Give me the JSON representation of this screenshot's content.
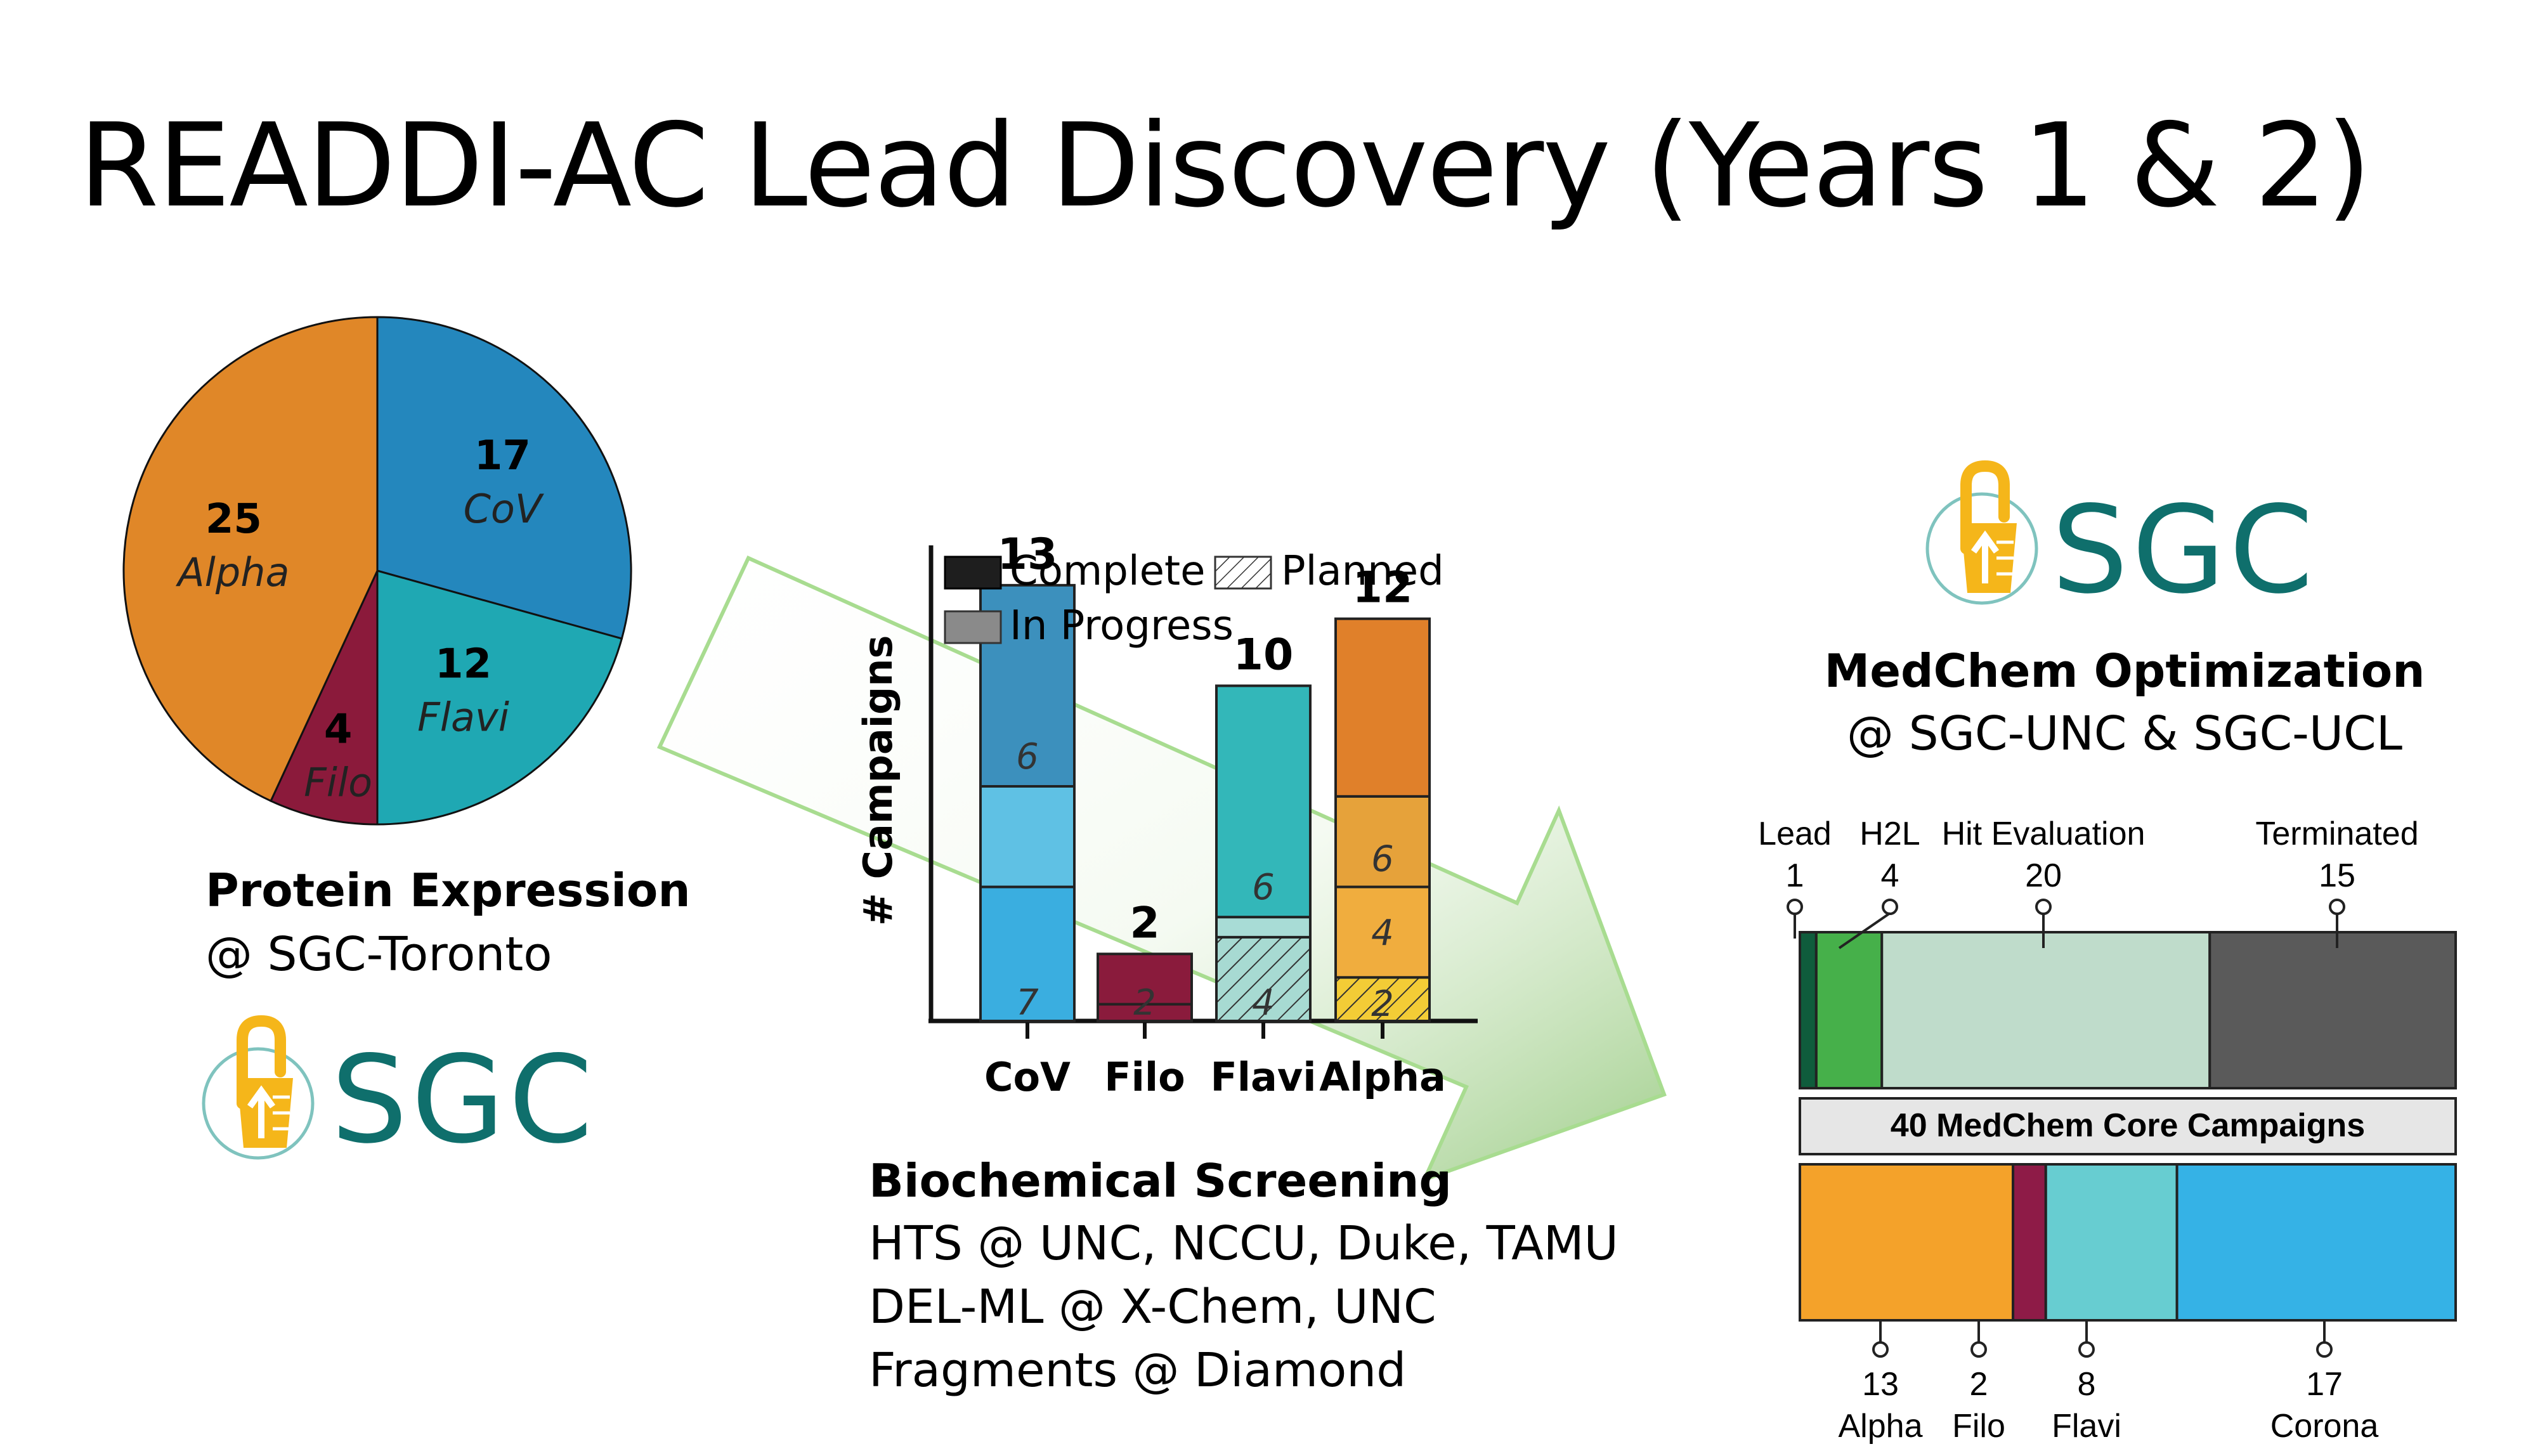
{
  "title": "READDI-AC Lead Discovery (Years 1 & 2)",
  "colors": {
    "alpha": "#e08728",
    "cov": "#2487bd",
    "flavi": "#1fa8b3",
    "filo": "#8b1a3b",
    "sgc_teal": "#0f6f6c",
    "sgc_yellow": "#f5b61a",
    "arrow_stroke": "#a8dc90"
  },
  "protein_expression": {
    "caption_bold": "Protein Expression",
    "caption": "@ SGC-Toronto",
    "logo_text": "SGC",
    "chart_data": {
      "type": "pie",
      "slices": [
        {
          "label": "CoV",
          "value": 17
        },
        {
          "label": "Flavi",
          "value": 12
        },
        {
          "label": "Filo",
          "value": 4
        },
        {
          "label": "Alpha",
          "value": 25
        }
      ]
    }
  },
  "screening": {
    "caption_bold": "Biochemical Screening",
    "lines": [
      "HTS @ UNC, NCCU, Duke, TAMU",
      "DEL-ML @ X-Chem, UNC",
      "Fragments @ Diamond"
    ],
    "chart_data": {
      "type": "bar",
      "ylabel": "# Campaigns",
      "categories": [
        "CoV",
        "Filo",
        "Flavi",
        "Alpha"
      ],
      "totals": [
        13,
        2,
        10,
        12
      ],
      "legend": [
        "Complete",
        "Planned",
        "In Progress"
      ],
      "segment_labels": {
        "CoV": [
          "7",
          "6"
        ],
        "Filo": [
          "2"
        ],
        "Flavi": [
          "4",
          "6"
        ],
        "Alpha": [
          "2",
          "4",
          "6"
        ]
      },
      "stacks": {
        "CoV": [
          {
            "status": "In Progress",
            "value": 4
          },
          {
            "status": "In Progress",
            "value": 3
          },
          {
            "status": "In Progress",
            "value": 6
          }
        ],
        "Filo": [
          {
            "status": "Complete",
            "value": 0.5
          },
          {
            "status": "In Progress",
            "value": 1.5
          }
        ],
        "Flavi": [
          {
            "status": "Planned",
            "value": 2.5
          },
          {
            "status": "In Progress",
            "value": 0.6
          },
          {
            "status": "In Progress",
            "value": 6.9
          }
        ],
        "Alpha": [
          {
            "status": "Planned",
            "value": 1.3
          },
          {
            "status": "In Progress",
            "value": 2.7
          },
          {
            "status": "In Progress",
            "value": 2.7
          },
          {
            "status": "In Progress",
            "value": 5.3
          }
        ]
      },
      "ylim": [
        0,
        14
      ]
    }
  },
  "medchem": {
    "logo_text": "SGC",
    "caption_bold": "MedChem Optimization",
    "caption": "@ SGC-UNC & SGC-UCL",
    "core_label": "40 MedChem Core Campaigns",
    "stages": [
      {
        "name": "Lead",
        "count": "1",
        "value": 1
      },
      {
        "name": "H2L",
        "count": "4",
        "value": 4
      },
      {
        "name": "Hit Evaluation",
        "count": "20",
        "value": 20
      },
      {
        "name": "Terminated",
        "count": "15",
        "value": 15
      }
    ],
    "families": [
      {
        "count": "13",
        "name": "Alpha",
        "value": 13
      },
      {
        "count": "2",
        "name": "Filo",
        "value": 2
      },
      {
        "count": "8",
        "name": "Flavi",
        "value": 8
      },
      {
        "count": "17",
        "name": "Corona",
        "value": 17
      }
    ]
  }
}
